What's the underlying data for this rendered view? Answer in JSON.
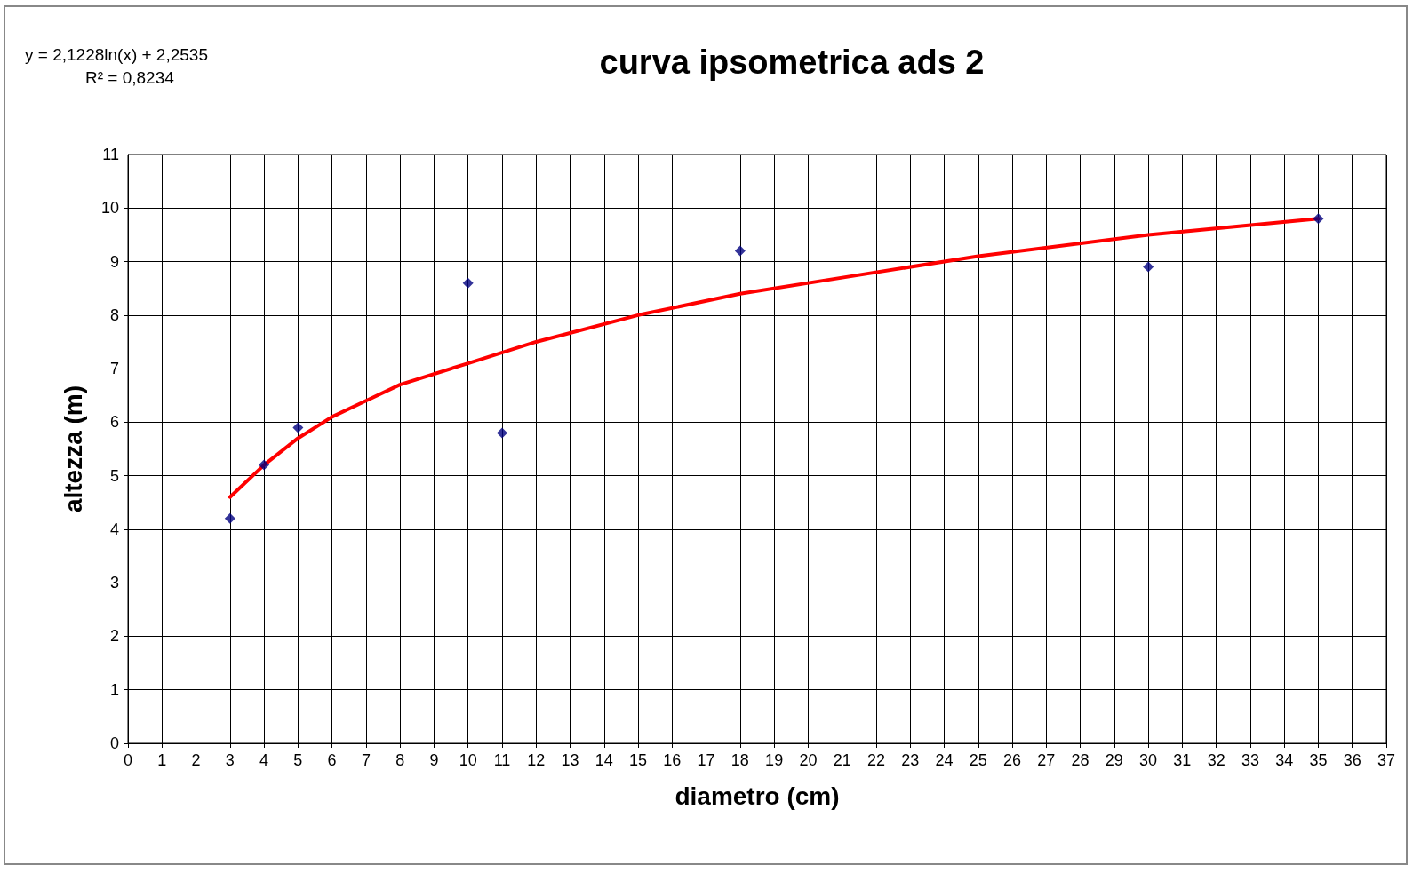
{
  "chart_data": {
    "type": "scatter",
    "title": "curva ipsometrica ads 2",
    "xlabel": "diametro (cm)",
    "ylabel": "altezza (m)",
    "annotations": [
      "y = 2,1228ln(x) + 2,2535",
      "R² = 0,8234"
    ],
    "series": [
      {
        "color": "#000080",
        "x": [
          3,
          4,
          5,
          10,
          11,
          18,
          30,
          35
        ],
        "values": [
          4.2,
          5.2,
          5.9,
          8.6,
          5.8,
          9.2,
          8.9,
          9.8
        ]
      },
      {
        "type": "line",
        "color": "#ff0000",
        "marker": "none",
        "x": [
          3,
          4,
          5,
          6,
          7,
          8,
          10,
          12,
          15,
          18,
          21,
          25,
          30,
          35
        ],
        "values": [
          4.6,
          5.2,
          5.7,
          6.1,
          6.4,
          6.7,
          7.1,
          7.5,
          8.0,
          8.4,
          8.7,
          9.1,
          9.5,
          9.8
        ]
      }
    ],
    "xlim": [
      0,
      37
    ],
    "xticks": [
      0,
      1,
      2,
      3,
      4,
      5,
      6,
      7,
      8,
      9,
      10,
      11,
      12,
      13,
      14,
      15,
      16,
      17,
      18,
      19,
      20,
      21,
      22,
      23,
      24,
      25,
      26,
      27,
      28,
      29,
      30,
      31,
      32,
      33,
      34,
      35,
      36,
      37
    ],
    "ylim": [
      0,
      11
    ],
    "yticks": [
      0,
      1,
      2,
      3,
      4,
      5,
      6,
      7,
      8,
      9,
      10,
      11
    ],
    "grid": true,
    "marker": "diamond",
    "line_style": "solid"
  }
}
